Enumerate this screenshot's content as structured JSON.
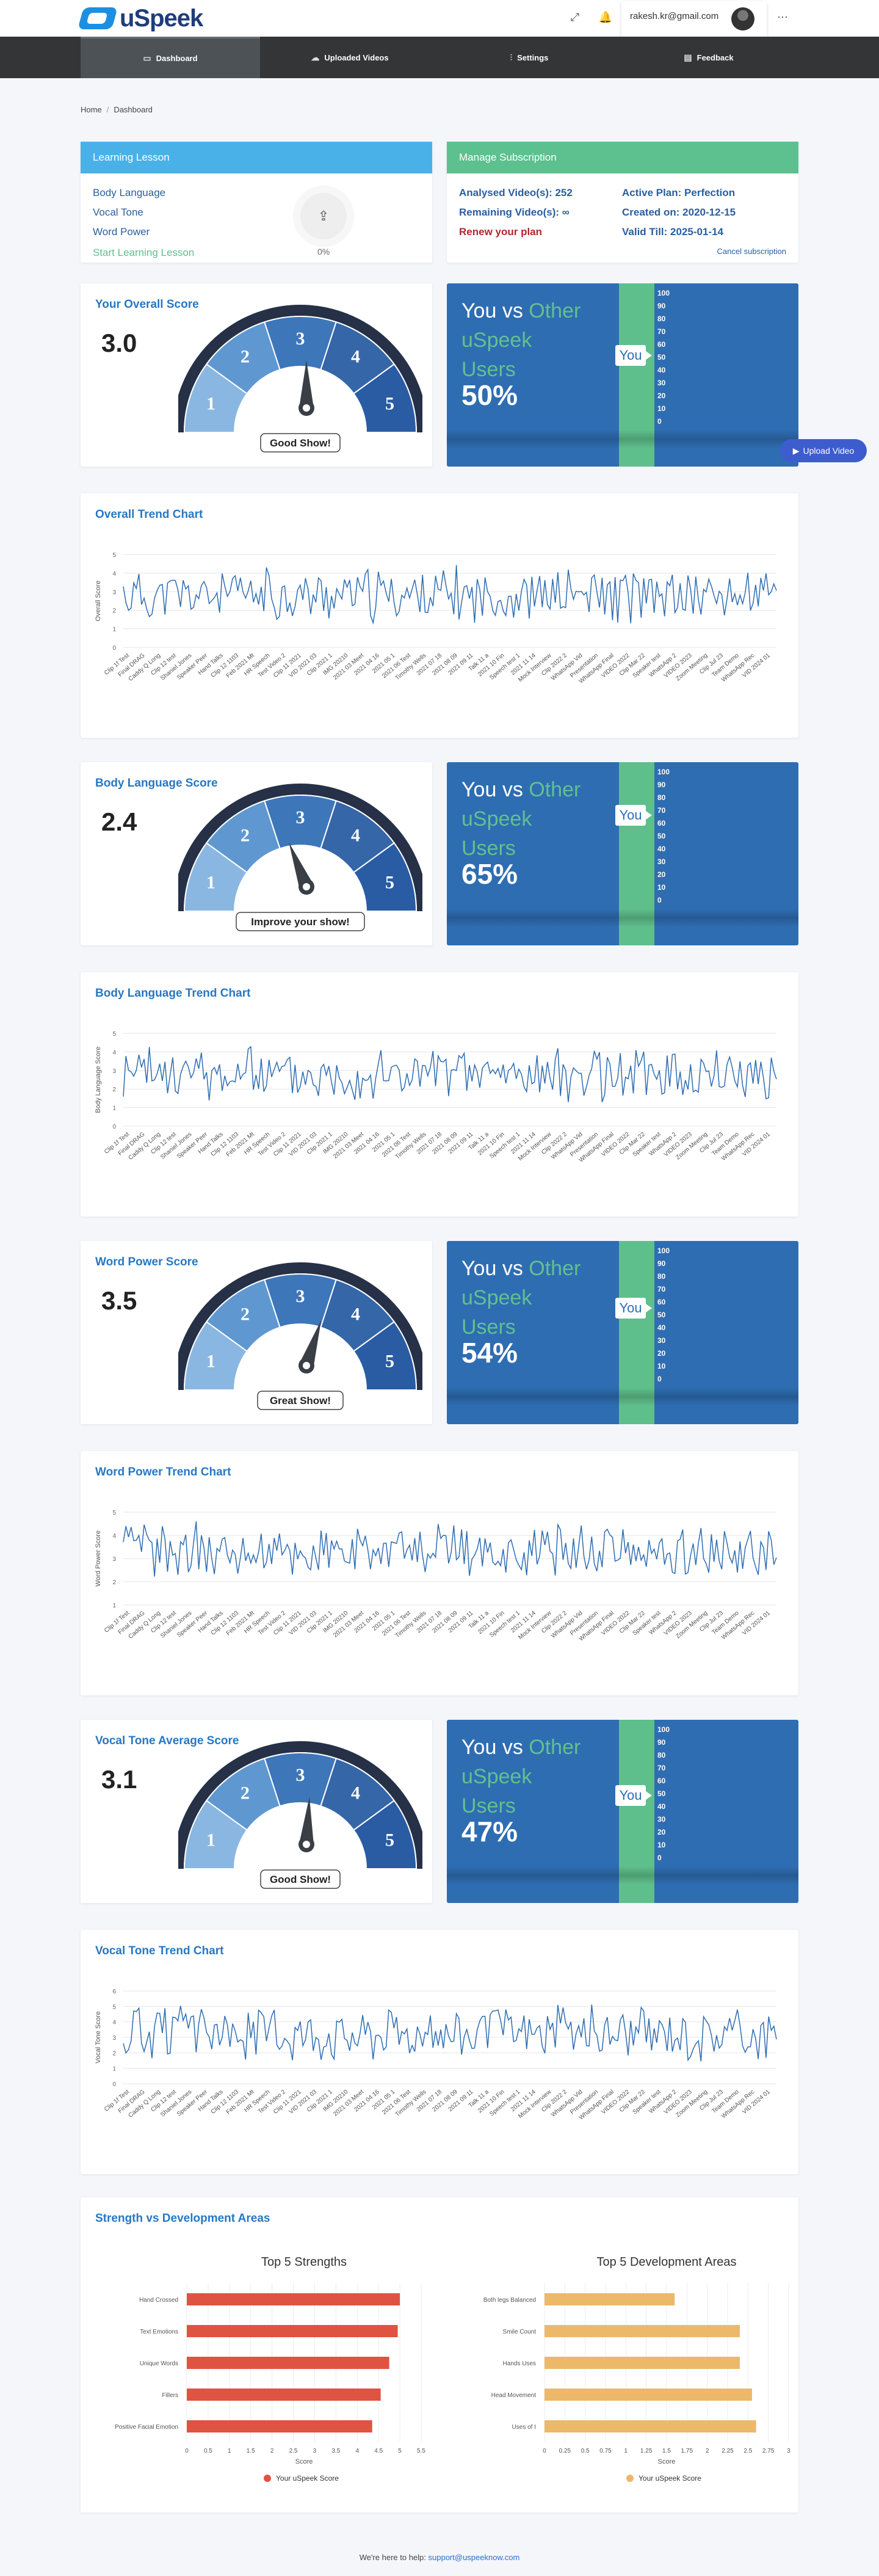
{
  "header": {
    "logo_text": "uSpeek",
    "user_email": "rakesh.kr@gmail.com",
    "expand_icon": "expand-icon",
    "bell_icon": "bell-icon",
    "more_icon": "more-icon"
  },
  "nav": {
    "items": [
      {
        "label": "Dashboard",
        "icon": "monitor-icon"
      },
      {
        "label": "Uploaded Videos",
        "icon": "cloud-upload-icon"
      },
      {
        "label": "Settings",
        "icon": "sliders-icon"
      },
      {
        "label": "Feedback",
        "icon": "chat-icon"
      }
    ]
  },
  "breadcrumb": {
    "home": "Home",
    "current": "Dashboard"
  },
  "learning": {
    "header": "Learning Lesson",
    "items": [
      "Body Language",
      "Vocal Tone",
      "Word Power"
    ],
    "cta": "Start Learning Lesson",
    "progress": "0%",
    "header_color": "#4ab1e8"
  },
  "subscription": {
    "header": "Manage Subscription",
    "analysed": "Analysed Video(s): 252",
    "remaining": "Remaining Video(s): ∞",
    "renew": "Renew your plan",
    "active_plan": "Active Plan: Perfection",
    "created": "Created on: 2020-12-15",
    "valid": "Valid Till: 2025-01-14",
    "cancel": "Cancel subscription",
    "header_color": "#5cc08f"
  },
  "compare_template": {
    "you_vs": "You vs",
    "other": "Other",
    "uspeek": "uSpeek",
    "users": "Users",
    "you_label": "You",
    "ticks": [
      "100",
      "90",
      "80",
      "70",
      "60",
      "50",
      "40",
      "30",
      "20",
      "10",
      "0"
    ]
  },
  "scores": [
    {
      "title": "Your Overall Score",
      "value": "3.0",
      "num": 3.0,
      "label": "Good Show!",
      "percent": "50%",
      "pct": 50,
      "trend_title": "Overall Trend Chart",
      "ylabel": "Overall Score"
    },
    {
      "title": "Body Language Score",
      "value": "2.4",
      "num": 2.4,
      "label": "Improve your show!",
      "percent": "65%",
      "pct": 65,
      "trend_title": "Body Language Trend Chart",
      "ylabel": "Body Language Score"
    },
    {
      "title": "Word Power Score",
      "value": "3.5",
      "num": 3.5,
      "label": "Great Show!",
      "percent": "54%",
      "pct": 54,
      "trend_title": "Word Power Trend Chart",
      "ylabel": "Word Power Score"
    },
    {
      "title": "Vocal Tone Average Score",
      "value": "3.1",
      "num": 3.1,
      "label": "Good Show!",
      "percent": "47%",
      "pct": 47,
      "trend_title": "Vocal Tone Trend Chart",
      "ylabel": "Vocal Tone Score"
    }
  ],
  "upload_button": "Upload Video",
  "strength": {
    "title": "Strength vs Development Areas"
  },
  "chart_data": [
    {
      "type": "line",
      "title": "Overall Trend Chart",
      "ylabel": "Overall Score",
      "ylim": [
        0,
        5
      ],
      "seed": 11
    },
    {
      "type": "line",
      "title": "Body Language Trend Chart",
      "ylabel": "Body Language Score",
      "ylim": [
        0,
        5
      ],
      "seed": 23
    },
    {
      "type": "line",
      "title": "Word Power Trend Chart",
      "ylabel": "Word Power Score",
      "ylim": [
        1,
        5
      ],
      "seed": 37
    },
    {
      "type": "line",
      "title": "Vocal Tone Trend Chart",
      "ylabel": "Vocal Tone Score",
      "ylim": [
        0,
        6
      ],
      "seed": 51
    },
    {
      "type": "bar",
      "title": "Top 5 Strengths",
      "categories": [
        "Hand Crossed",
        "Text Emotions",
        "Unique Words",
        "Fillers",
        "Positive Facial Emotion"
      ],
      "values": [
        5,
        4.95,
        4.75,
        4.55,
        4.35
      ],
      "xlim": [
        0,
        5.5
      ],
      "xticks": [
        "0",
        "0.5",
        "1",
        "1.5",
        "2",
        "2.5",
        "3",
        "3.5",
        "4",
        "4.5",
        "5",
        "5.5"
      ],
      "xlabel": "Score",
      "legend": "Your uSpeek Score",
      "color": "#df5343"
    },
    {
      "type": "bar",
      "title": "Top 5 Development Areas",
      "categories": [
        "Both legs Balanced",
        "Smile Count",
        "Hands Uses",
        "Head Movement",
        "Uses of I"
      ],
      "values": [
        1.6,
        2.4,
        2.4,
        2.55,
        2.6
      ],
      "xlim": [
        0,
        3
      ],
      "xticks": [
        "0",
        "0.25",
        "0.5",
        "0.75",
        "1",
        "1.25",
        "1.5",
        "1.75",
        "2",
        "2.25",
        "2.5",
        "2.75",
        "3"
      ],
      "xlabel": "Score",
      "legend": "Your uSpeek Score",
      "color": "#ecb96a"
    }
  ],
  "footer": {
    "text": "We're here to help:",
    "email": "support@uspeeknow.com"
  }
}
